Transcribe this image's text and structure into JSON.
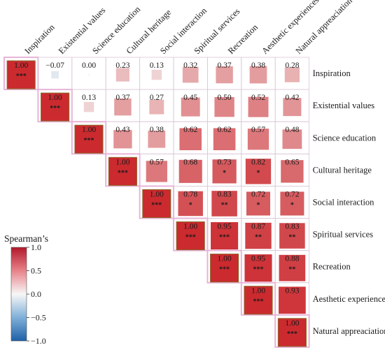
{
  "chart_data": {
    "type": "heatmap",
    "variables": [
      "Inspiration",
      "Existential values",
      "Science education",
      "Cultural heritage",
      "Social interaction",
      "Spiritual services",
      "Recreation",
      "Aesthetic experiences",
      "Natural appreaciation"
    ],
    "cells": [
      {
        "row": 0,
        "col": 0,
        "value": "1.00",
        "r": 1.0,
        "sig": "***"
      },
      {
        "row": 0,
        "col": 1,
        "value": "−0.07",
        "r": -0.07,
        "sig": ""
      },
      {
        "row": 0,
        "col": 2,
        "value": "0.00",
        "r": 0.0,
        "sig": ""
      },
      {
        "row": 0,
        "col": 3,
        "value": "0.23",
        "r": 0.23,
        "sig": ""
      },
      {
        "row": 0,
        "col": 4,
        "value": "0.13",
        "r": 0.13,
        "sig": ""
      },
      {
        "row": 0,
        "col": 5,
        "value": "0.32",
        "r": 0.32,
        "sig": ""
      },
      {
        "row": 0,
        "col": 6,
        "value": "0.37",
        "r": 0.37,
        "sig": ""
      },
      {
        "row": 0,
        "col": 7,
        "value": "0.38",
        "r": 0.38,
        "sig": ""
      },
      {
        "row": 0,
        "col": 8,
        "value": "0.28",
        "r": 0.28,
        "sig": ""
      },
      {
        "row": 1,
        "col": 1,
        "value": "1.00",
        "r": 1.0,
        "sig": "***"
      },
      {
        "row": 1,
        "col": 2,
        "value": "0.13",
        "r": 0.13,
        "sig": ""
      },
      {
        "row": 1,
        "col": 3,
        "value": "0.37",
        "r": 0.37,
        "sig": ""
      },
      {
        "row": 1,
        "col": 4,
        "value": "0.27",
        "r": 0.27,
        "sig": ""
      },
      {
        "row": 1,
        "col": 5,
        "value": "0.45",
        "r": 0.45,
        "sig": ""
      },
      {
        "row": 1,
        "col": 6,
        "value": "0.50",
        "r": 0.5,
        "sig": ""
      },
      {
        "row": 1,
        "col": 7,
        "value": "0.52",
        "r": 0.52,
        "sig": ""
      },
      {
        "row": 1,
        "col": 8,
        "value": "0.42",
        "r": 0.42,
        "sig": ""
      },
      {
        "row": 2,
        "col": 2,
        "value": "1.00",
        "r": 1.0,
        "sig": "***"
      },
      {
        "row": 2,
        "col": 3,
        "value": "0.43",
        "r": 0.43,
        "sig": ""
      },
      {
        "row": 2,
        "col": 4,
        "value": "0.38",
        "r": 0.38,
        "sig": ""
      },
      {
        "row": 2,
        "col": 5,
        "value": "0.62",
        "r": 0.62,
        "sig": ""
      },
      {
        "row": 2,
        "col": 6,
        "value": "0.62",
        "r": 0.62,
        "sig": ""
      },
      {
        "row": 2,
        "col": 7,
        "value": "0.57",
        "r": 0.57,
        "sig": ""
      },
      {
        "row": 2,
        "col": 8,
        "value": "0.48",
        "r": 0.48,
        "sig": ""
      },
      {
        "row": 3,
        "col": 3,
        "value": "1.00",
        "r": 1.0,
        "sig": "***"
      },
      {
        "row": 3,
        "col": 4,
        "value": "0.57",
        "r": 0.57,
        "sig": ""
      },
      {
        "row": 3,
        "col": 5,
        "value": "0.68",
        "r": 0.68,
        "sig": ""
      },
      {
        "row": 3,
        "col": 6,
        "value": "0.73",
        "r": 0.73,
        "sig": "*"
      },
      {
        "row": 3,
        "col": 7,
        "value": "0.82",
        "r": 0.82,
        "sig": "*"
      },
      {
        "row": 3,
        "col": 8,
        "value": "0.65",
        "r": 0.65,
        "sig": ""
      },
      {
        "row": 4,
        "col": 4,
        "value": "1.00",
        "r": 1.0,
        "sig": "***"
      },
      {
        "row": 4,
        "col": 5,
        "value": "0.78",
        "r": 0.78,
        "sig": "*"
      },
      {
        "row": 4,
        "col": 6,
        "value": "0.83",
        "r": 0.83,
        "sig": "**"
      },
      {
        "row": 4,
        "col": 7,
        "value": "0.72",
        "r": 0.72,
        "sig": "*"
      },
      {
        "row": 4,
        "col": 8,
        "value": "0.72",
        "r": 0.72,
        "sig": "*"
      },
      {
        "row": 5,
        "col": 5,
        "value": "1.00",
        "r": 1.0,
        "sig": "***"
      },
      {
        "row": 5,
        "col": 6,
        "value": "0.95",
        "r": 0.95,
        "sig": "***"
      },
      {
        "row": 5,
        "col": 7,
        "value": "0.87",
        "r": 0.87,
        "sig": "**"
      },
      {
        "row": 5,
        "col": 8,
        "value": "0.83",
        "r": 0.83,
        "sig": "**"
      },
      {
        "row": 6,
        "col": 6,
        "value": "1.00",
        "r": 1.0,
        "sig": "***"
      },
      {
        "row": 6,
        "col": 7,
        "value": "0.95",
        "r": 0.95,
        "sig": "***"
      },
      {
        "row": 6,
        "col": 8,
        "value": "0.88",
        "r": 0.88,
        "sig": "**"
      },
      {
        "row": 7,
        "col": 7,
        "value": "1.00",
        "r": 1.0,
        "sig": "***"
      },
      {
        "row": 7,
        "col": 8,
        "value": "0.93",
        "r": 0.93,
        "sig": ""
      },
      {
        "row": 8,
        "col": 8,
        "value": "1.00",
        "r": 1.0,
        "sig": "***"
      }
    ],
    "legend": {
      "title": "Spearman’s",
      "ticks": [
        {
          "value": 1.0,
          "label": "1.0"
        },
        {
          "value": 0.5,
          "label": "0.5"
        },
        {
          "value": 0.0,
          "label": "0.0"
        },
        {
          "value": -0.5,
          "label": "−0.5"
        },
        {
          "value": -1.0,
          "label": "−1.0"
        }
      ],
      "range": [
        -1.0,
        1.0
      ]
    },
    "colors": {
      "negative": "#2166ac",
      "neutral": "#f7f7f7",
      "positive": "#cb2a2f",
      "diagonal_border": "#e8b4d8",
      "grid": "#d9c6d6"
    },
    "layout_type": "upper-triangle",
    "cell_size_encodes": "abs(r)"
  }
}
